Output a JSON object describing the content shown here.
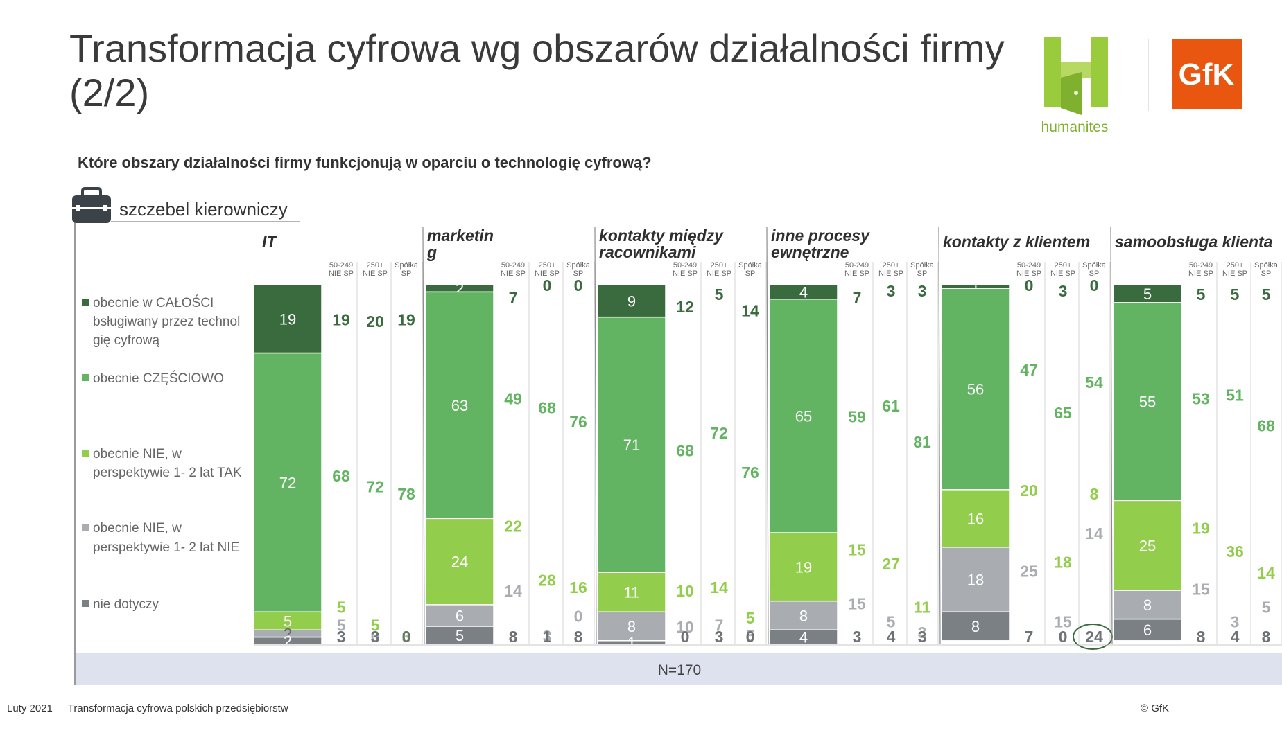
{
  "title": "Transformacja cyfrowa wg obszarów działalności firmy (2/2)",
  "question": "Które obszary działalności firmy funkcjonują w oparciu o technologię cyfrową?",
  "logos": {
    "humanites": "humanites",
    "gfk": "GfK"
  },
  "level_label": "szczebel kierowniczy",
  "base_note": "N=170",
  "footer": {
    "date": "Luty 2021",
    "report": "Transformacja cyfrowa polskich przedsiębiorstw",
    "copyright": "© GfK"
  },
  "colors": {
    "seg": [
      "#3a6b3e",
      "#63b462",
      "#92cd4c",
      "#a9adb2",
      "#7b8085"
    ],
    "sub_text": [
      "#3a6b3e",
      "#63b462",
      "#92cd4c",
      "#a9adb2",
      "#6d7277"
    ],
    "band": "#dde2ee",
    "circle": "#3a6b3e"
  },
  "chart_data": {
    "type": "bar",
    "stacked": true,
    "legend": [
      "obecnie w CAŁOŚCI obsługiwany przez technologię cyfrową",
      "obecnie CZĘŚCIOWO",
      "obecnie NIE, w perspektywie 1- 2 lat TAK",
      "obecnie NIE, w perspektywie 1- 2 lat NIE",
      "nie dotyczy"
    ],
    "sub_columns": [
      {
        "line1": "50-249",
        "line2": "NIE SP"
      },
      {
        "line1": "250+",
        "line2": "NIE SP"
      },
      {
        "line1": "Spółka",
        "line2": "SP"
      }
    ],
    "areas": [
      {
        "name": "IT",
        "main": [
          19,
          72,
          5,
          2,
          2
        ],
        "sub": [
          [
            19,
            68,
            5,
            5,
            3
          ],
          [
            20,
            72,
            5,
            0,
            3
          ],
          [
            19,
            78,
            3,
            0,
            0
          ]
        ]
      },
      {
        "name": "marketing",
        "main": [
          2,
          63,
          24,
          6,
          5
        ],
        "sub": [
          [
            7,
            49,
            22,
            14,
            8
          ],
          [
            0,
            68,
            28,
            3,
            1
          ],
          [
            0,
            76,
            16,
            0,
            8
          ]
        ]
      },
      {
        "name": "kontakty między pracownikami",
        "main": [
          9,
          71,
          11,
          8,
          1
        ],
        "sub": [
          [
            12,
            68,
            10,
            10,
            0
          ],
          [
            5,
            72,
            14,
            7,
            3
          ],
          [
            14,
            76,
            5,
            5,
            0
          ]
        ]
      },
      {
        "name": "inne procesy wewnętrzne",
        "main": [
          4,
          65,
          19,
          8,
          4
        ],
        "sub": [
          [
            7,
            59,
            15,
            15,
            3
          ],
          [
            3,
            61,
            27,
            5,
            4
          ],
          [
            3,
            81,
            11,
            3,
            3
          ]
        ]
      },
      {
        "name": "kontakty z klientem",
        "main": [
          1,
          56,
          16,
          18,
          8
        ],
        "sub": [
          [
            0,
            47,
            20,
            25,
            7
          ],
          [
            3,
            65,
            18,
            15,
            0
          ],
          [
            0,
            54,
            8,
            14,
            24
          ]
        ]
      },
      {
        "name": "samoobsługa klienta",
        "main": [
          5,
          55,
          25,
          8,
          6
        ],
        "sub": [
          [
            5,
            53,
            19,
            15,
            8
          ],
          [
            5,
            51,
            36,
            3,
            4
          ],
          [
            5,
            68,
            14,
            5,
            8
          ]
        ]
      }
    ],
    "highlight": {
      "area": 4,
      "sub": 2,
      "segment": 4
    }
  }
}
